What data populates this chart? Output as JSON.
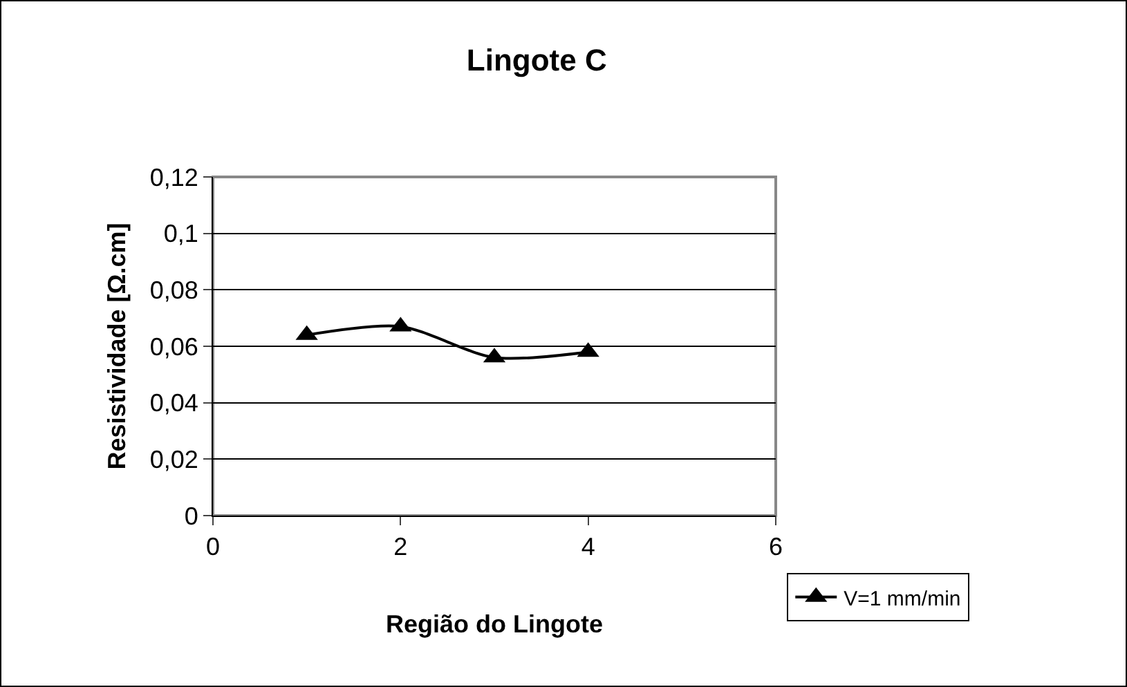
{
  "chart_data": {
    "type": "line",
    "title": "Lingote C",
    "xlabel": "Região do Lingote",
    "ylabel": "Resistividade [Ω.cm]",
    "x": [
      1,
      2,
      3,
      4
    ],
    "series": [
      {
        "name": "V=1 mm/min",
        "color": "#000000",
        "values": [
          0.064,
          0.067,
          0.056,
          0.058
        ]
      }
    ],
    "xlim": [
      0,
      6
    ],
    "xticks": [
      0,
      2,
      4,
      6
    ],
    "ylim": [
      0,
      0.12
    ],
    "yticks": [
      {
        "value": 0,
        "label": "0"
      },
      {
        "value": 0.02,
        "label": "0,02"
      },
      {
        "value": 0.04,
        "label": "0,04"
      },
      {
        "value": 0.06,
        "label": "0,06"
      },
      {
        "value": 0.08,
        "label": "0,08"
      },
      {
        "value": 0.1,
        "label": "0,1"
      },
      {
        "value": 0.12,
        "label": "0,12"
      }
    ],
    "grid": "y",
    "legend": "bottom right",
    "marker": "triangle",
    "line_style": "solid"
  }
}
